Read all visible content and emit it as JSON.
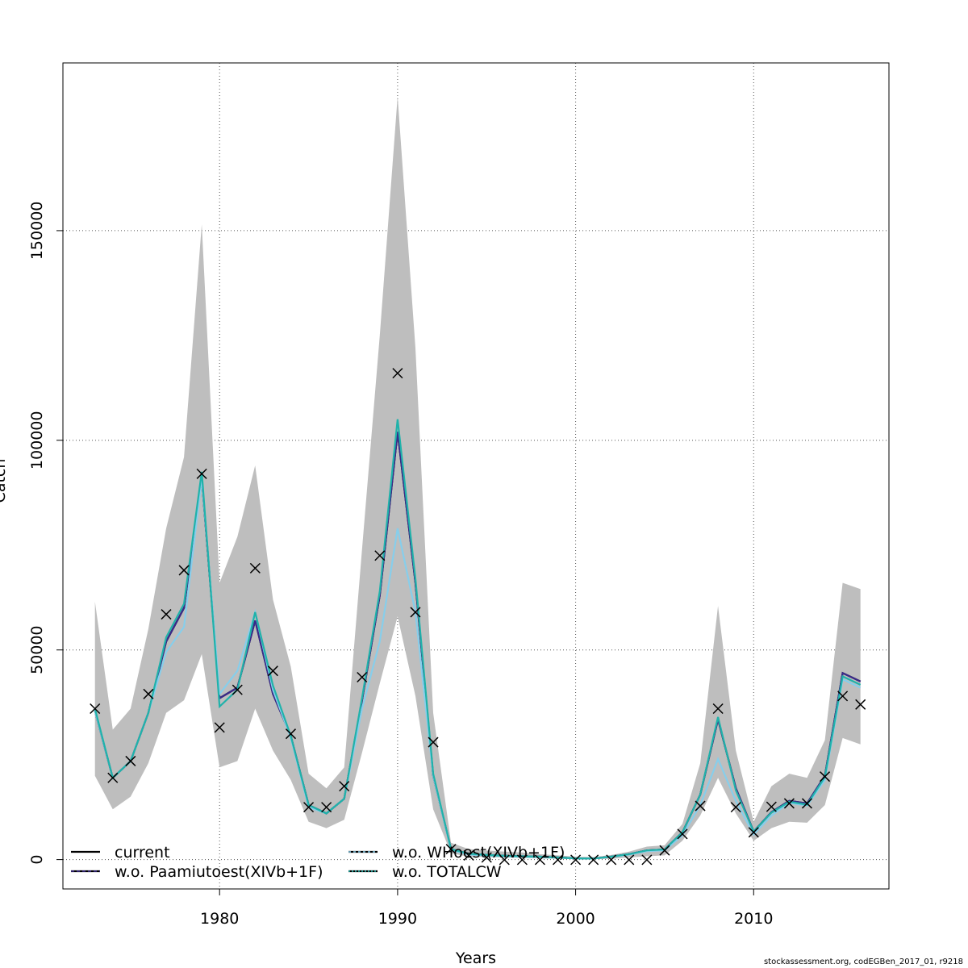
{
  "chart_data": {
    "type": "line",
    "title": "",
    "xlabel": "Years",
    "ylabel": "Catch",
    "xlim": [
      1971.2,
      2017.6
    ],
    "ylim": [
      -7000,
      190000
    ],
    "x_ticks": [
      1980,
      1990,
      2000,
      2010
    ],
    "y_ticks": [
      0,
      50000,
      100000,
      150000
    ],
    "y_tick_labels": [
      "0",
      "50000",
      "100000",
      "150000"
    ],
    "grid": true,
    "legend_position": "bottom-left",
    "years": [
      1973,
      1974,
      1975,
      1976,
      1977,
      1978,
      1979,
      1980,
      1981,
      1982,
      1983,
      1984,
      1985,
      1986,
      1987,
      1988,
      1989,
      1990,
      1991,
      1992,
      1993,
      1994,
      1995,
      1996,
      1997,
      1998,
      1999,
      2000,
      2001,
      2002,
      2003,
      2004,
      2005,
      2006,
      2007,
      2008,
      2009,
      2010,
      2011,
      2012,
      2013,
      2014,
      2015,
      2016
    ],
    "band": {
      "lower": [
        20000,
        12000,
        15000,
        23000,
        35000,
        38000,
        49000,
        22000,
        23500,
        36000,
        26000,
        19000,
        9000,
        7500,
        9500,
        25500,
        42000,
        58000,
        39000,
        12000,
        1500,
        700,
        600,
        500,
        400,
        300,
        200,
        150,
        100,
        200,
        500,
        800,
        1000,
        4500,
        10500,
        19500,
        11000,
        4500,
        7500,
        9000,
        8800,
        13000,
        29000,
        27500
      ],
      "upper": [
        61500,
        31000,
        36000,
        55000,
        79000,
        96000,
        151500,
        66000,
        77000,
        94000,
        62000,
        46000,
        20500,
        17000,
        22000,
        74000,
        125000,
        182000,
        122000,
        35000,
        4000,
        2500,
        2200,
        1900,
        1700,
        1300,
        1000,
        700,
        600,
        1100,
        1900,
        3100,
        3400,
        8500,
        23000,
        60500,
        26000,
        9000,
        17500,
        20500,
        19500,
        28500,
        66000,
        64500
      ]
    },
    "series": [
      {
        "name": "current",
        "color": "#000000",
        "dash": "solid",
        "values": [
          35500,
          19500,
          23500,
          35000,
          52000,
          60000,
          91000,
          38500,
          41000,
          57000,
          39500,
          29500,
          13000,
          11000,
          14500,
          38000,
          63000,
          102000,
          66000,
          20000,
          2500,
          1400,
          1100,
          900,
          800,
          700,
          500,
          300,
          250,
          700,
          1300,
          2200,
          2400,
          6500,
          15500,
          33500,
          17000,
          6700,
          11300,
          14000,
          13400,
          20000,
          44500,
          42500
        ]
      },
      {
        "name": "w.o. Paamiutoest(XIVb+1F)",
        "color": "#3a2a8a",
        "dash": "4,3",
        "values": [
          35500,
          19500,
          23500,
          35000,
          52000,
          60000,
          91000,
          38500,
          41000,
          57000,
          39500,
          29500,
          13000,
          11000,
          14500,
          38000,
          63000,
          102000,
          66000,
          20000,
          2500,
          1400,
          1100,
          900,
          800,
          700,
          500,
          300,
          250,
          700,
          1300,
          2200,
          2400,
          6500,
          15500,
          33500,
          17000,
          6700,
          11300,
          14000,
          13400,
          20000,
          44500,
          42500
        ]
      },
      {
        "name": "w.o. WHoest(XIVb+1F)",
        "color": "#87ceeb",
        "dash": "3,3",
        "values": [
          35500,
          19500,
          23500,
          35000,
          49500,
          55500,
          91000,
          39500,
          45000,
          59000,
          40500,
          29000,
          12500,
          11000,
          14500,
          36000,
          52000,
          79000,
          59000,
          20000,
          2300,
          1200,
          1000,
          800,
          700,
          600,
          450,
          280,
          230,
          650,
          1200,
          2000,
          2200,
          5800,
          13000,
          24000,
          14000,
          6000,
          10500,
          13500,
          12900,
          19000,
          43000,
          41000
        ]
      },
      {
        "name": "w.o. TOTALCW",
        "color": "#20b2aa",
        "dash": "2,2",
        "values": [
          36000,
          19500,
          23500,
          35000,
          53000,
          61000,
          92500,
          36500,
          40500,
          59000,
          41500,
          29500,
          13000,
          11000,
          14500,
          38500,
          64000,
          105000,
          67000,
          20500,
          2500,
          1400,
          1100,
          900,
          800,
          700,
          500,
          300,
          250,
          700,
          1300,
          2200,
          2400,
          6500,
          15500,
          34000,
          16500,
          6700,
          11200,
          13800,
          13100,
          19700,
          43700,
          41700
        ]
      }
    ],
    "observed": {
      "values": [
        36000,
        19500,
        23500,
        39500,
        58500,
        69000,
        92000,
        31500,
        40500,
        69500,
        45000,
        30000,
        12500,
        12500,
        17500,
        43500,
        72500,
        116000,
        59000,
        28000,
        2500,
        1000,
        500,
        -50,
        -50,
        -50,
        -50,
        -50,
        -50,
        -50,
        -50,
        -50,
        2200,
        6100,
        12800,
        36000,
        12500,
        6500,
        12600,
        13400,
        13400,
        19800,
        39000,
        37000
      ]
    }
  },
  "footer_text": "stockassessment.org, codEGBen_2017_01, r9218"
}
